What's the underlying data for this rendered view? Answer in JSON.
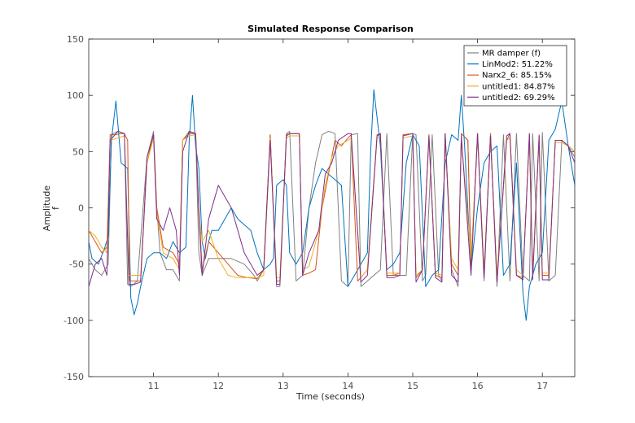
{
  "chart_data": {
    "type": "line",
    "title": "Simulated Response Comparison",
    "xlabel": "Time (seconds)",
    "ylabel": "Amplitude",
    "ylabel_sub": "f",
    "xlim": [
      10.0,
      17.5
    ],
    "ylim": [
      -150,
      150
    ],
    "xticks": [
      11,
      12,
      13,
      14,
      15,
      16,
      17
    ],
    "yticks": [
      -150,
      -100,
      -50,
      0,
      50,
      100,
      150
    ],
    "grid": false,
    "legend_position": "top-right",
    "series": [
      {
        "name": "MR damper (f)",
        "color": "#808080",
        "x": [
          10.0,
          10.1,
          10.2,
          10.3,
          10.35,
          10.45,
          10.55,
          10.6,
          10.65,
          10.75,
          10.9,
          11.0,
          11.05,
          11.1,
          11.2,
          11.3,
          11.4,
          11.45,
          11.55,
          11.65,
          11.7,
          11.75,
          11.85,
          12.0,
          12.2,
          12.4,
          12.55,
          12.6,
          12.7,
          12.8,
          12.9,
          12.95,
          13.05,
          13.1,
          13.2,
          13.3,
          13.4,
          13.5,
          13.6,
          13.7,
          13.8,
          13.9,
          14.0,
          14.05,
          14.15,
          14.2,
          14.3,
          14.4,
          14.5,
          14.6,
          14.7,
          14.8,
          14.9,
          15.0,
          15.05,
          15.15,
          15.2,
          15.3,
          15.4,
          15.45,
          15.5,
          15.6,
          15.7,
          15.75,
          15.85,
          15.9,
          16.0,
          16.1,
          16.2,
          16.3,
          16.4,
          16.5,
          16.6,
          16.7,
          16.8,
          16.85,
          16.95,
          17.0,
          17.1,
          17.2,
          17.3,
          17.4,
          17.5
        ],
        "y": [
          -45,
          -55,
          -60,
          -50,
          65,
          68,
          66,
          -68,
          -70,
          -65,
          45,
          68,
          0,
          -40,
          -55,
          -55,
          -65,
          60,
          68,
          65,
          -40,
          -60,
          -45,
          -45,
          -45,
          -50,
          -60,
          -65,
          -55,
          65,
          -70,
          -70,
          66,
          68,
          -65,
          -60,
          0,
          40,
          65,
          68,
          66,
          -65,
          -70,
          65,
          66,
          -70,
          -65,
          -60,
          -55,
          66,
          -60,
          -60,
          -60,
          66,
          65,
          -65,
          -60,
          65,
          -60,
          -65,
          66,
          -55,
          -70,
          66,
          60,
          -50,
          66,
          -65,
          66,
          -70,
          65,
          -65,
          66,
          -60,
          -65,
          66,
          -65,
          67,
          -65,
          -60,
          60,
          55,
          45
        ]
      },
      {
        "name": "LinMod2: 51.22%",
        "color": "#0072BD",
        "x": [
          10.0,
          10.05,
          10.15,
          10.25,
          10.3,
          10.35,
          10.42,
          10.5,
          10.6,
          10.65,
          10.7,
          10.75,
          10.8,
          10.9,
          11.0,
          11.1,
          11.2,
          11.3,
          11.4,
          11.5,
          11.55,
          11.6,
          11.65,
          11.7,
          11.75,
          11.8,
          11.85,
          11.9,
          12.0,
          12.1,
          12.2,
          12.3,
          12.4,
          12.5,
          12.6,
          12.7,
          12.8,
          12.85,
          12.9,
          13.0,
          13.05,
          13.1,
          13.2,
          13.3,
          13.4,
          13.5,
          13.6,
          13.7,
          13.8,
          13.9,
          14.0,
          14.1,
          14.2,
          14.3,
          14.35,
          14.4,
          14.5,
          14.6,
          14.7,
          14.8,
          14.9,
          15.0,
          15.1,
          15.2,
          15.3,
          15.4,
          15.5,
          15.6,
          15.7,
          15.75,
          15.8,
          15.9,
          16.0,
          16.1,
          16.2,
          16.3,
          16.4,
          16.5,
          16.6,
          16.7,
          16.75,
          16.8,
          16.9,
          17.0,
          17.1,
          17.2,
          17.3,
          17.4,
          17.5
        ],
        "y": [
          -30,
          -45,
          -50,
          -35,
          -25,
          60,
          95,
          40,
          35,
          -80,
          -95,
          -85,
          -70,
          -45,
          -40,
          -40,
          -45,
          -30,
          -40,
          -35,
          60,
          100,
          55,
          35,
          -30,
          -45,
          -30,
          -20,
          -20,
          -10,
          0,
          -10,
          -15,
          -20,
          -40,
          -55,
          -50,
          -45,
          20,
          25,
          20,
          -40,
          -50,
          -40,
          0,
          20,
          35,
          30,
          25,
          20,
          -70,
          -60,
          -50,
          -40,
          50,
          105,
          55,
          -55,
          -50,
          -40,
          40,
          65,
          55,
          -70,
          -60,
          -55,
          40,
          65,
          60,
          100,
          55,
          -55,
          0,
          40,
          50,
          55,
          -60,
          -50,
          40,
          -75,
          -100,
          -70,
          -50,
          -40,
          60,
          70,
          95,
          55,
          20
        ]
      },
      {
        "name": "Narx2_6: 85.15%",
        "color": "#D95319",
        "x": [
          10.0,
          10.1,
          10.2,
          10.28,
          10.33,
          10.4,
          10.5,
          10.55,
          10.6,
          10.63,
          10.7,
          10.8,
          10.9,
          11.0,
          11.05,
          11.15,
          11.3,
          11.4,
          11.45,
          11.55,
          11.65,
          11.7,
          11.75,
          11.85,
          12.0,
          12.15,
          12.3,
          12.45,
          12.6,
          12.7,
          12.8,
          12.9,
          12.95,
          13.05,
          13.1,
          13.25,
          13.3,
          13.4,
          13.5,
          13.6,
          13.7,
          13.8,
          13.9,
          14.0,
          14.05,
          14.15,
          14.2,
          14.3,
          14.45,
          14.5,
          14.6,
          14.7,
          14.8,
          14.85,
          15.0,
          15.05,
          15.15,
          15.25,
          15.35,
          15.45,
          15.5,
          15.6,
          15.7,
          15.75,
          15.85,
          15.9,
          16.0,
          16.1,
          16.2,
          16.3,
          16.45,
          16.5,
          16.6,
          16.7,
          16.8,
          16.85,
          16.95,
          17.0,
          17.1,
          17.2,
          17.3,
          17.4,
          17.5
        ],
        "y": [
          -20,
          -30,
          -40,
          -35,
          65,
          65,
          66,
          66,
          60,
          -65,
          -65,
          -65,
          40,
          65,
          0,
          -35,
          -40,
          -50,
          60,
          66,
          66,
          0,
          -55,
          -30,
          -40,
          -50,
          -60,
          -62,
          -63,
          -55,
          65,
          -65,
          -65,
          65,
          66,
          66,
          -60,
          -58,
          -55,
          0,
          30,
          60,
          55,
          62,
          65,
          -65,
          -62,
          -55,
          65,
          66,
          -60,
          -60,
          -58,
          65,
          66,
          -62,
          -55,
          65,
          -60,
          -62,
          66,
          -50,
          -60,
          66,
          60,
          -50,
          66,
          -60,
          66,
          -65,
          60,
          66,
          -60,
          -62,
          66,
          -60,
          65,
          -60,
          -60,
          60,
          60,
          55,
          50
        ]
      },
      {
        "name": "untitled1: 84.87%",
        "color": "#EDB120",
        "x": [
          10.0,
          10.1,
          10.2,
          10.28,
          10.33,
          10.45,
          10.55,
          10.62,
          10.7,
          10.8,
          10.9,
          11.0,
          11.05,
          11.15,
          11.3,
          11.4,
          11.45,
          11.55,
          11.65,
          11.7,
          11.75,
          11.85,
          12.0,
          12.15,
          12.3,
          12.45,
          12.6,
          12.7,
          12.8,
          12.9,
          12.95,
          13.05,
          13.1,
          13.25,
          13.3,
          13.4,
          13.55,
          13.65,
          13.75,
          13.85,
          14.0,
          14.05,
          14.2,
          14.3,
          14.45,
          14.5,
          14.6,
          14.7,
          14.8,
          14.85,
          15.0,
          15.05,
          15.15,
          15.25,
          15.35,
          15.45,
          15.5,
          15.6,
          15.7,
          15.75,
          15.9,
          16.0,
          16.1,
          16.2,
          16.3,
          16.45,
          16.5,
          16.6,
          16.7,
          16.8,
          16.85,
          16.95,
          17.0,
          17.1,
          17.2,
          17.3,
          17.4,
          17.5
        ],
        "y": [
          -20,
          -25,
          -35,
          -40,
          60,
          62,
          64,
          -60,
          -60,
          -60,
          40,
          62,
          -5,
          -40,
          -45,
          -55,
          60,
          64,
          65,
          -5,
          -30,
          -20,
          -45,
          -60,
          -62,
          -62,
          -62,
          -60,
          62,
          -62,
          -62,
          62,
          64,
          64,
          -55,
          -52,
          -20,
          20,
          45,
          55,
          60,
          62,
          -62,
          -55,
          62,
          64,
          -58,
          -58,
          -58,
          62,
          64,
          -60,
          -55,
          62,
          -58,
          -60,
          62,
          -45,
          -55,
          62,
          -45,
          62,
          -55,
          62,
          -60,
          60,
          62,
          -55,
          -60,
          62,
          -58,
          62,
          -58,
          -58,
          58,
          58,
          55,
          50
        ]
      },
      {
        "name": "untitled2: 69.29%",
        "color": "#7E2F8E",
        "x": [
          10.0,
          10.1,
          10.2,
          10.28,
          10.33,
          10.45,
          10.55,
          10.62,
          10.7,
          10.8,
          10.9,
          11.0,
          11.05,
          11.15,
          11.25,
          11.35,
          11.4,
          11.45,
          11.55,
          11.65,
          11.7,
          11.75,
          11.85,
          12.0,
          12.1,
          12.2,
          12.3,
          12.4,
          12.5,
          12.6,
          12.7,
          12.8,
          12.9,
          12.95,
          13.05,
          13.1,
          13.25,
          13.3,
          13.4,
          13.55,
          13.65,
          13.75,
          13.85,
          14.0,
          14.05,
          14.2,
          14.3,
          14.45,
          14.5,
          14.6,
          14.7,
          14.8,
          14.85,
          15.0,
          15.05,
          15.15,
          15.25,
          15.35,
          15.45,
          15.5,
          15.6,
          15.7,
          15.75,
          15.9,
          16.0,
          16.1,
          16.2,
          16.3,
          16.45,
          16.5,
          16.6,
          16.7,
          16.8,
          16.85,
          16.95,
          17.0,
          17.1,
          17.2,
          17.3,
          17.4,
          17.5
        ],
        "y": [
          -70,
          -50,
          -45,
          -60,
          60,
          68,
          66,
          -68,
          -68,
          -66,
          45,
          65,
          -10,
          -20,
          0,
          -20,
          -60,
          50,
          68,
          66,
          -5,
          -60,
          -10,
          20,
          10,
          0,
          -20,
          -40,
          -50,
          -60,
          -55,
          60,
          -68,
          -68,
          64,
          66,
          66,
          -60,
          -40,
          -20,
          30,
          40,
          60,
          66,
          66,
          -66,
          -60,
          64,
          66,
          -62,
          -62,
          -60,
          64,
          66,
          -66,
          -55,
          64,
          -62,
          -66,
          66,
          -60,
          -66,
          64,
          -60,
          66,
          -62,
          64,
          -66,
          64,
          66,
          -60,
          -64,
          66,
          -64,
          64,
          -64,
          -64,
          60,
          60,
          55,
          40
        ]
      }
    ]
  }
}
